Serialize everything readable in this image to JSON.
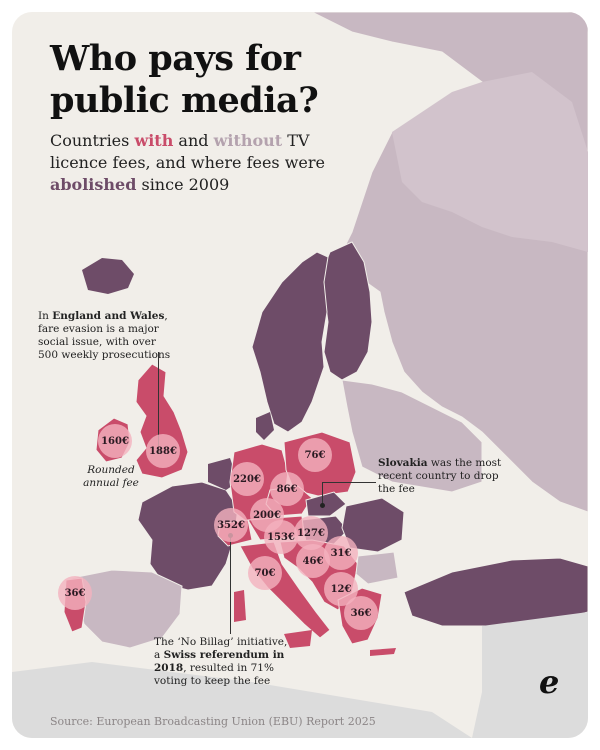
{
  "title": "Who pays for public media?",
  "subtitle": {
    "part1": "Countries ",
    "with": "with",
    "part2": " and ",
    "without": "without",
    "part3": " TV licence fees, and where fees were ",
    "abolished": "abolished",
    "part4": " since 2009"
  },
  "legend_colors": {
    "with_fee": "#c94c6a",
    "without_fee": "#c8b8c2",
    "abolished": "#6e4c68",
    "non_europe_land": "#dcdcdc",
    "sea": "#f1eee9",
    "fee_bubble": "#f4b2be"
  },
  "annotations": {
    "england_pre": "In ",
    "england_bold": "England and Wales",
    "england_post": ", fare evasion is a major social issue, with over 500 weekly prosecutions",
    "rounded": "Rounded annual fee",
    "slovakia_bold": "Slovakia",
    "slovakia_post": " was the most recent country to drop the fee",
    "swiss_pre": "The ‘No Billag’ initiative, a ",
    "swiss_bold": "Swiss referendum in 2018",
    "swiss_post": ", resulted in 71% voting to keep the fee"
  },
  "fees": [
    {
      "country": "Ireland",
      "label": "160€",
      "value": 160
    },
    {
      "country": "United Kingdom",
      "label": "188€",
      "value": 188
    },
    {
      "country": "Germany",
      "label": "220€",
      "value": 220
    },
    {
      "country": "Poland",
      "label": "76€",
      "value": 76
    },
    {
      "country": "Czech Republic",
      "label": "86€",
      "value": 86
    },
    {
      "country": "Austria",
      "label": "200€",
      "value": 200
    },
    {
      "country": "Switzerland",
      "label": "352€",
      "value": 352
    },
    {
      "country": "Slovenia",
      "label": "153€",
      "value": 153
    },
    {
      "country": "Croatia",
      "label": "127€",
      "value": 127
    },
    {
      "country": "Bosnia and Herzegovina",
      "label": "46€",
      "value": 46
    },
    {
      "country": "Serbia",
      "label": "31€",
      "value": 31
    },
    {
      "country": "Italy",
      "label": "70€",
      "value": 70
    },
    {
      "country": "North Macedonia",
      "label": "12€",
      "value": 12
    },
    {
      "country": "Greece",
      "label": "36€",
      "value": 36
    },
    {
      "country": "Portugal",
      "label": "36€",
      "value": 36
    }
  ],
  "source": "Source: European Broadcasting Union (EBU) Report 2025",
  "logo": "e"
}
